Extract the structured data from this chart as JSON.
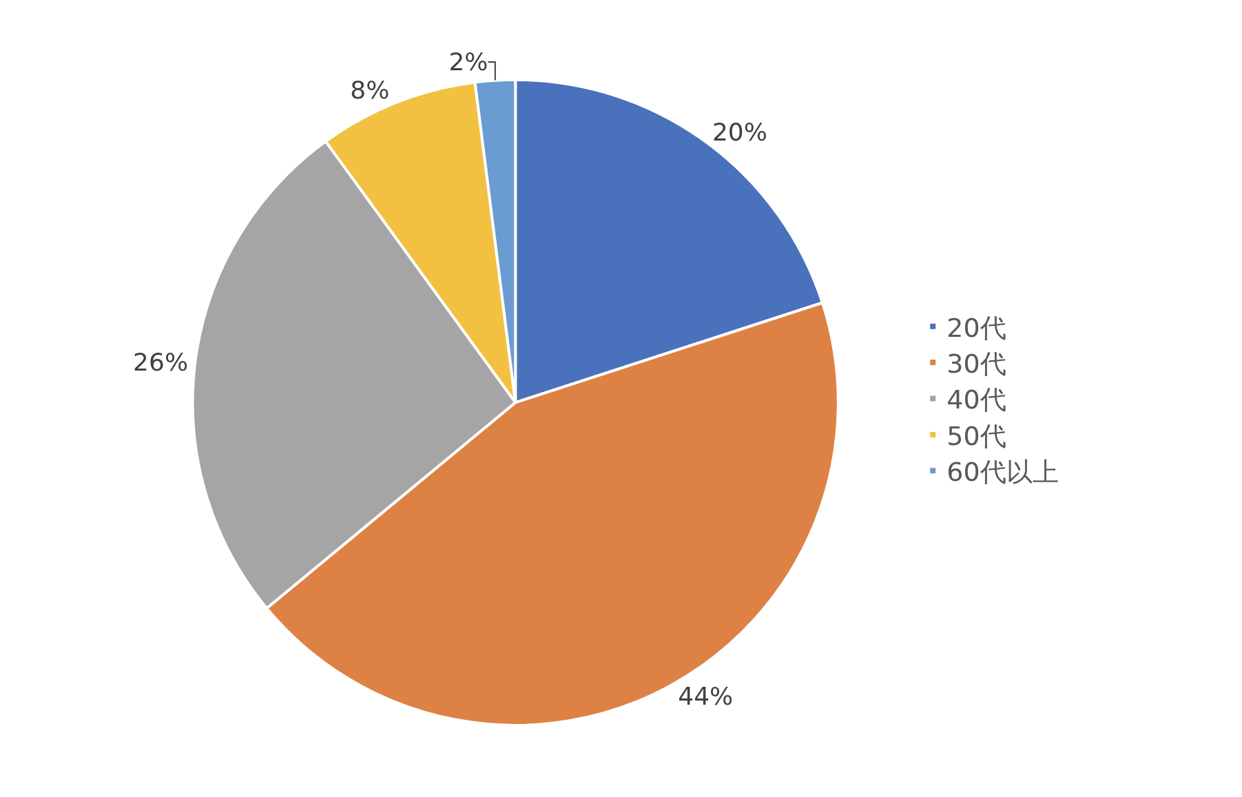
{
  "chart_data": {
    "type": "pie",
    "categories": [
      "20代",
      "30代",
      "40代",
      "50代",
      "60代以上"
    ],
    "values": [
      20,
      44,
      26,
      8,
      2
    ],
    "value_labels": [
      "20%",
      "44%",
      "26%",
      "8%",
      "2%"
    ],
    "colors": [
      "#4a71bb",
      "#dd8244",
      "#a5a5a5",
      "#f2c141",
      "#6a9bd2"
    ],
    "legend": "right"
  }
}
